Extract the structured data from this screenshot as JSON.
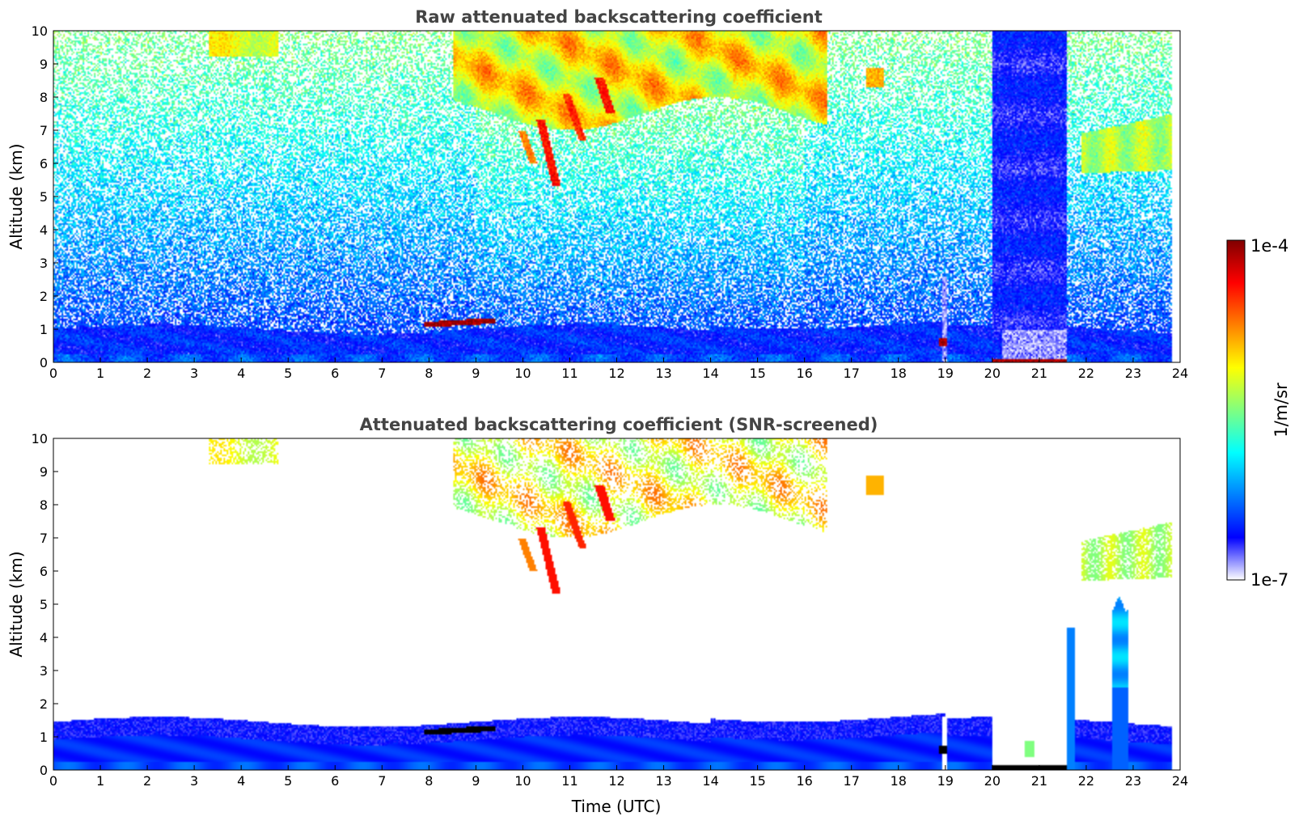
{
  "chart_data": [
    {
      "type": "heatmap",
      "title": "Raw attenuated backscattering coefficient",
      "xlabel": "",
      "ylabel": "Altitude (km)",
      "xlim": [
        0,
        24
      ],
      "ylim": [
        0,
        10
      ],
      "xticks": [
        "0",
        "1",
        "2",
        "3",
        "4",
        "5",
        "6",
        "7",
        "8",
        "9",
        "10",
        "11",
        "12",
        "13",
        "14",
        "15",
        "16",
        "17",
        "18",
        "19",
        "20",
        "21",
        "22",
        "23",
        "24"
      ],
      "yticks": [
        "0",
        "1",
        "2",
        "3",
        "4",
        "5",
        "6",
        "7",
        "8",
        "9",
        "10"
      ],
      "features": {
        "boundary_layer_top_km": 1.0,
        "elevated_layer": {
          "t_start": 7.9,
          "t_end": 9.4,
          "alt_km": [
            1.05,
            1.3
          ],
          "level": 0.97
        },
        "precip_gap": {
          "t_start": 20.0,
          "t_end": 21.6
        },
        "noise_texture": "speckled"
      }
    },
    {
      "type": "heatmap",
      "title": "Attenuated backscattering coefficient (SNR-screened)",
      "xlabel": "Time (UTC)",
      "ylabel": "Altitude (km)",
      "xlim": [
        0,
        24
      ],
      "ylim": [
        0,
        10
      ],
      "xticks": [
        "0",
        "1",
        "2",
        "3",
        "4",
        "5",
        "6",
        "7",
        "8",
        "9",
        "10",
        "11",
        "12",
        "13",
        "14",
        "15",
        "16",
        "17",
        "18",
        "19",
        "20",
        "21",
        "22",
        "23",
        "24"
      ],
      "yticks": [
        "0",
        "1",
        "2",
        "3",
        "4",
        "5",
        "6",
        "7",
        "8",
        "9",
        "10"
      ],
      "features": {
        "boundary_layer_top_km": 1.4,
        "elevated_layer": {
          "t_start": 7.9,
          "t_end": 9.4,
          "alt_km": [
            1.0,
            1.3
          ],
          "level": 0.0
        },
        "precip_gap": {
          "t_start": 20.0,
          "t_end": 21.6
        },
        "noise_texture": "screened"
      }
    }
  ],
  "colorbar": {
    "label": "1/m/sr",
    "max_label": "1e-4",
    "min_label": "1e-7",
    "colormap": [
      "#ffffff",
      "#0000ff",
      "#0080ff",
      "#00ffff",
      "#80ff80",
      "#ffff00",
      "#ff8000",
      "#ff0000",
      "#800000"
    ]
  },
  "colors": {
    "title": "#444444",
    "axes": "#000000",
    "background": "#ffffff"
  }
}
